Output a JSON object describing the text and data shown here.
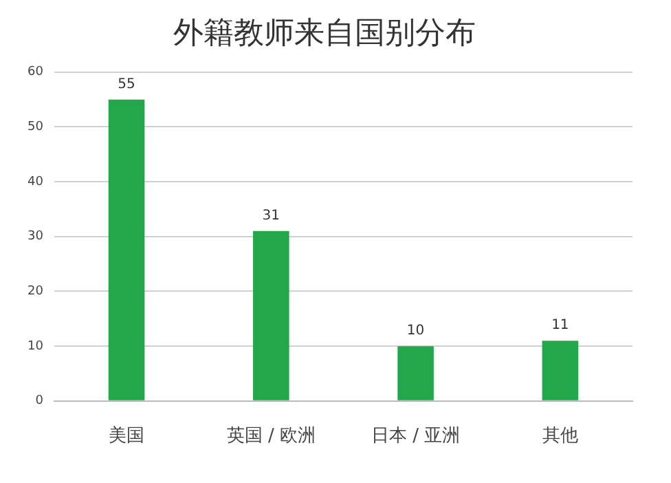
{
  "chart_data": {
    "type": "bar",
    "title": "外籍教师来自国别分布",
    "categories": [
      "美国",
      "英国 / 欧洲",
      "日本 / 亚洲",
      "其他"
    ],
    "values": [
      55,
      31,
      10,
      11
    ],
    "color": "#22a84a",
    "ylim": [
      0,
      60
    ],
    "yticks": [
      0,
      10,
      20,
      30,
      40,
      50,
      60
    ],
    "grid": "y",
    "legend": false,
    "data_labels": true
  }
}
